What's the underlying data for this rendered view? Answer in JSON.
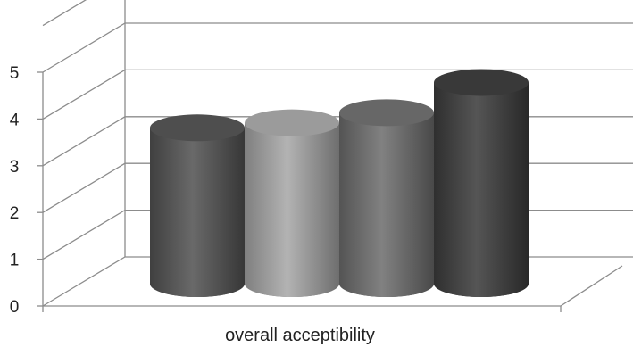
{
  "chart_data": {
    "type": "bar",
    "style": "3d-cylinder",
    "categories": [
      "overall acceptibility"
    ],
    "series": [
      {
        "values": [
          3.8
        ],
        "color": "#555555"
      },
      {
        "values": [
          3.9
        ],
        "color": "#a9a9a9"
      },
      {
        "values": [
          4.1
        ],
        "color": "#707070"
      },
      {
        "values": [
          4.7
        ],
        "color": "#3e3e3e"
      }
    ],
    "y_ticks": [
      "0",
      "1",
      "2",
      "3",
      "4",
      "5"
    ],
    "ylim": [
      0,
      5
    ],
    "grid": true,
    "legend": "none",
    "title": "",
    "xlabel": "",
    "ylabel": ""
  }
}
